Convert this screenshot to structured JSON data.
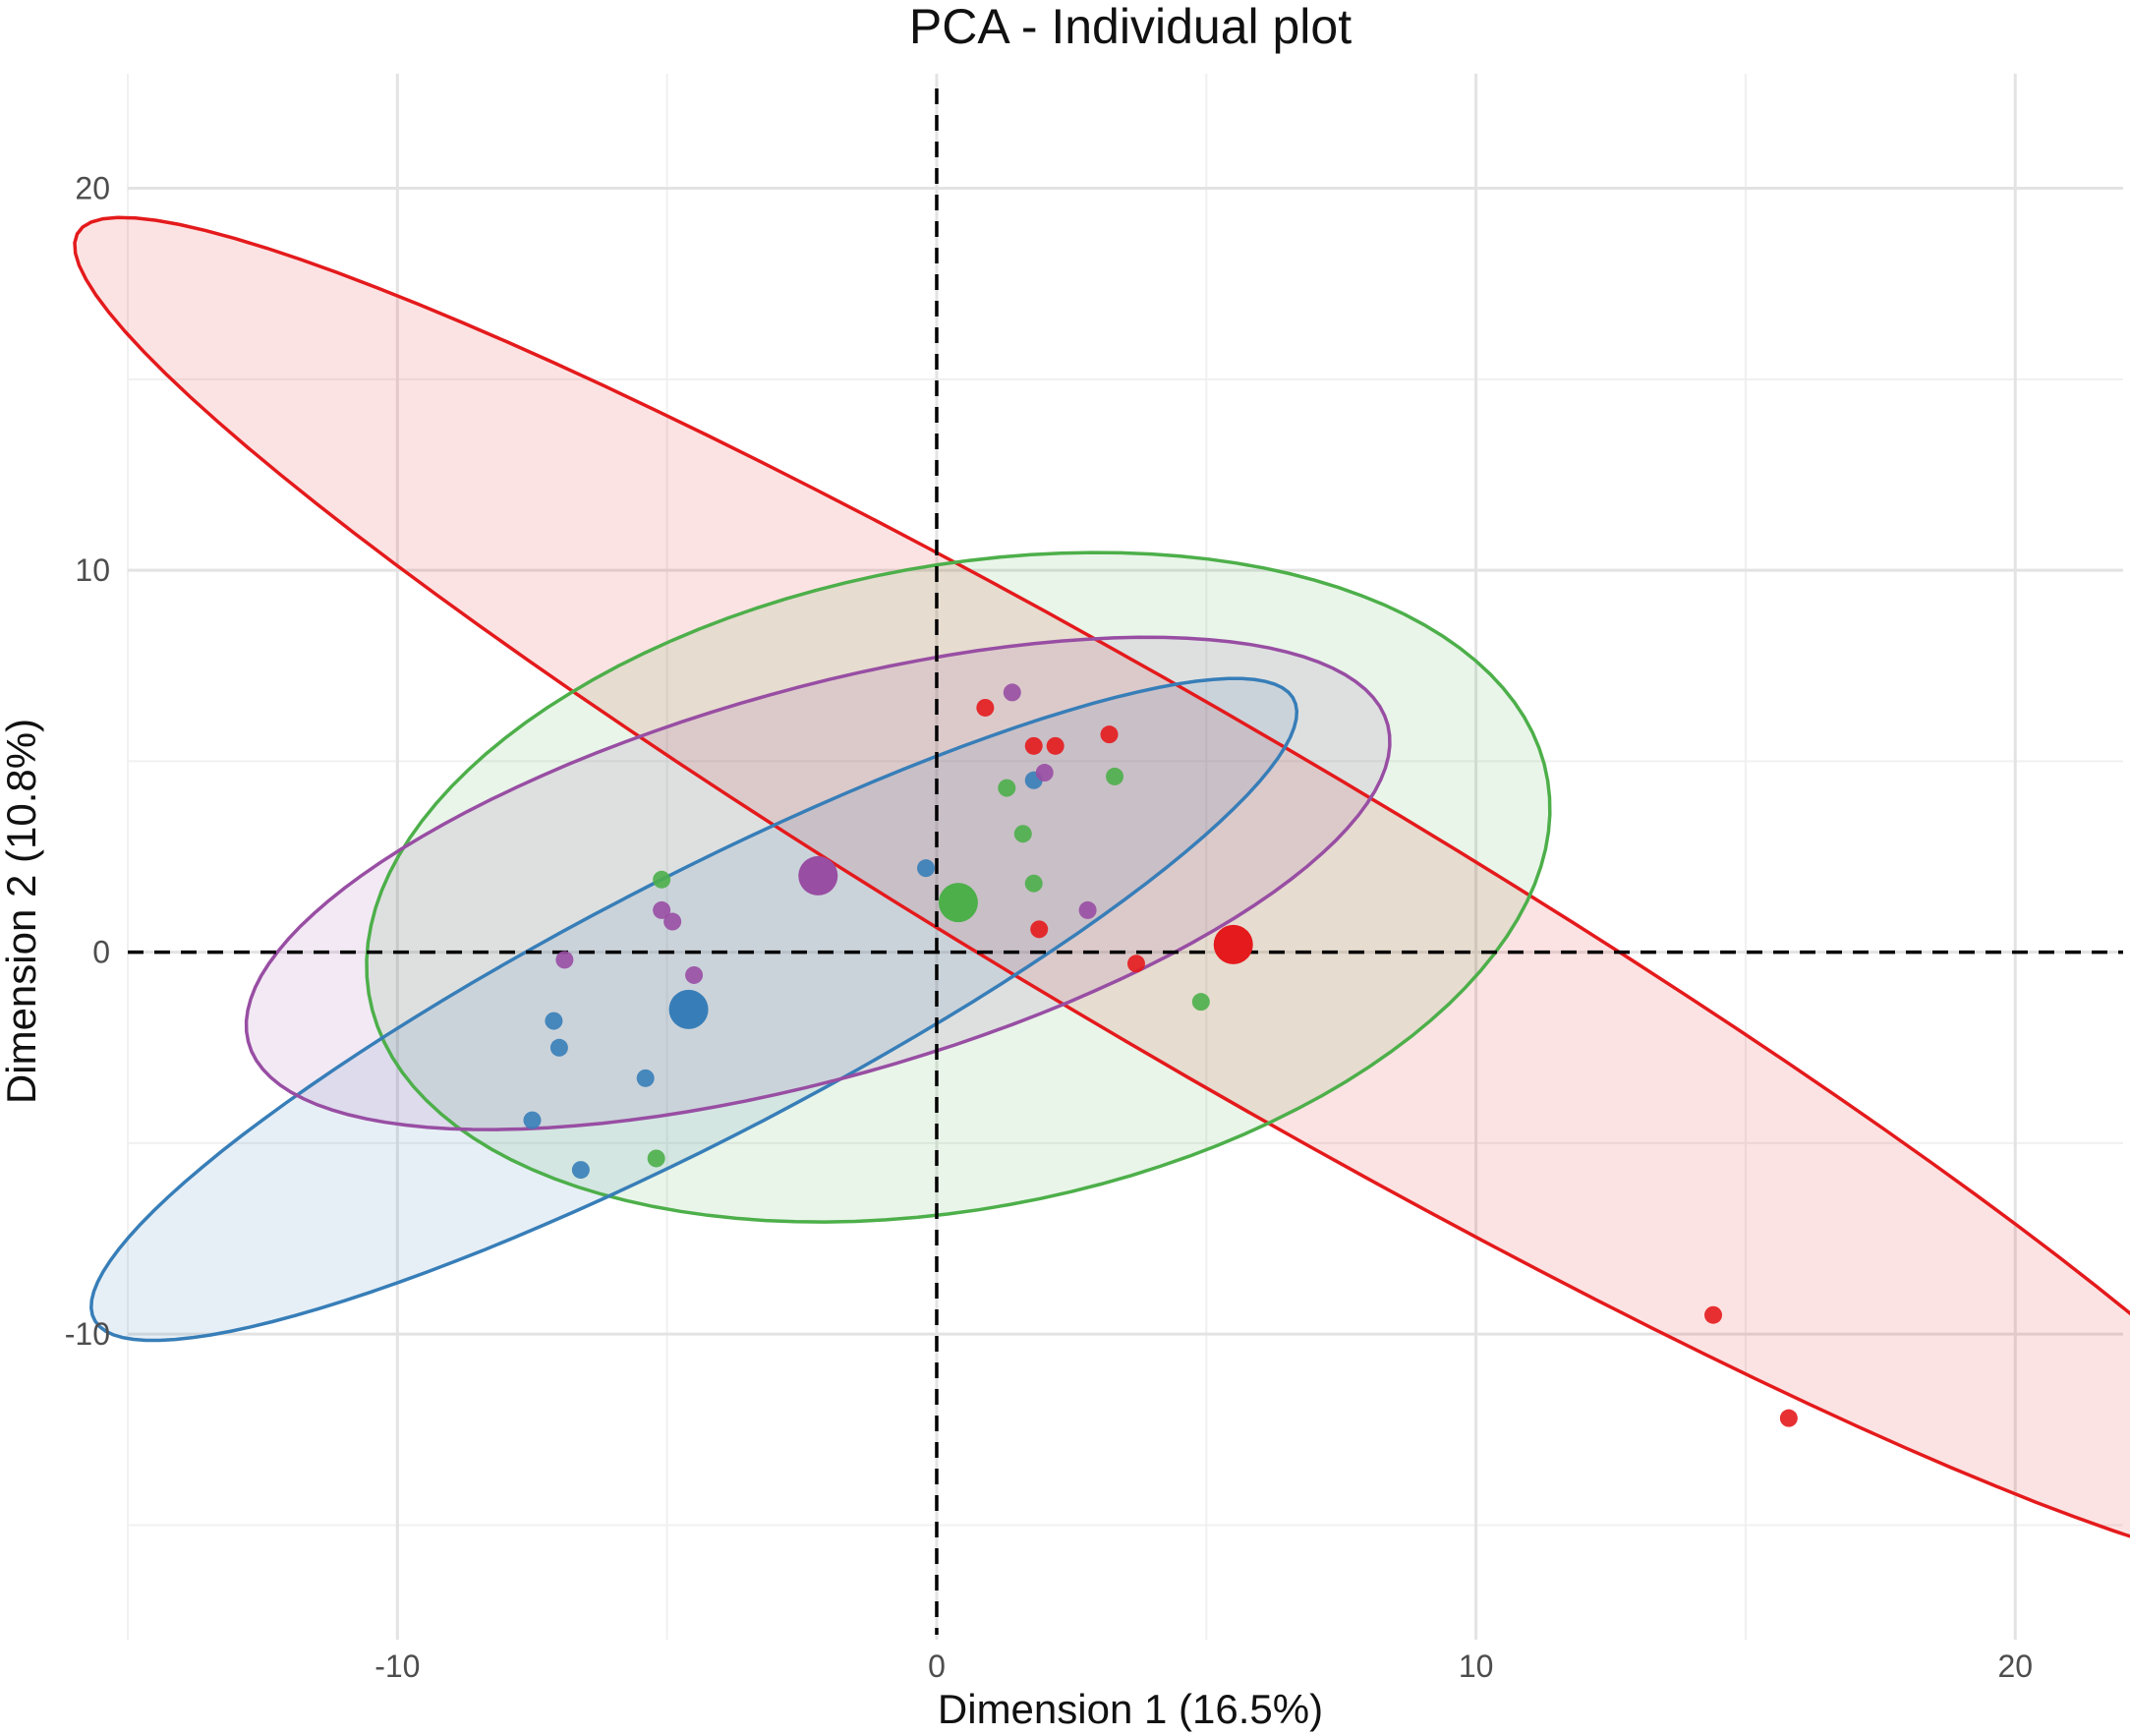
{
  "chart_data": {
    "type": "scatter",
    "title": "PCA - Individual plot",
    "xlabel": "Dimension 1 (16.5%)",
    "ylabel": "Dimension 2 (10.8%)",
    "xlim": [
      -15,
      22
    ],
    "ylim": [
      -18,
      23
    ],
    "grid": true,
    "legend": "none",
    "x_ticks": [
      -10,
      0,
      10,
      20
    ],
    "y_ticks": [
      -10,
      0,
      10,
      20
    ],
    "reference_lines": {
      "x": 0,
      "y": 0,
      "style": "dashed"
    },
    "series": [
      {
        "name": "red",
        "color": "#e41a1c",
        "points": [
          [
            0.9,
            6.4
          ],
          [
            1.8,
            5.4
          ],
          [
            2.2,
            5.4
          ],
          [
            3.2,
            5.7
          ],
          [
            1.9,
            0.6
          ],
          [
            3.7,
            -0.3
          ],
          [
            14.4,
            -9.5
          ],
          [
            15.8,
            -12.2
          ]
        ],
        "centroid": [
          5.5,
          0.2
        ],
        "ellipse": {
          "center": [
            5,
            1.5
          ],
          "semi_axes": [
            27.2,
            3.9
          ],
          "angle_deg": -40
        }
      },
      {
        "name": "green",
        "color": "#4daf4a",
        "points": [
          [
            -5.1,
            1.9
          ],
          [
            1.3,
            4.3
          ],
          [
            1.6,
            3.1
          ],
          [
            1.8,
            1.8
          ],
          [
            3.3,
            4.6
          ],
          [
            4.9,
            -1.3
          ],
          [
            -5.2,
            -5.4
          ]
        ],
        "centroid": [
          0.4,
          1.3
        ],
        "ellipse": {
          "center": [
            0.4,
            1.7
          ],
          "semi_axes": [
            11.4,
            8.2
          ],
          "angle_deg": 23
        }
      },
      {
        "name": "blue",
        "color": "#377eb8",
        "points": [
          [
            -0.2,
            2.2
          ],
          [
            1.8,
            4.5
          ],
          [
            -7.1,
            -1.8
          ],
          [
            -7.0,
            -2.5
          ],
          [
            -7.5,
            -4.4
          ],
          [
            -5.4,
            -3.3
          ],
          [
            -6.6,
            -5.7
          ]
        ],
        "centroid": [
          -4.6,
          -1.5
        ],
        "ellipse": {
          "center": [
            -4.5,
            -1.5
          ],
          "semi_axes": [
            13.8,
            3.1
          ],
          "angle_deg": 37
        }
      },
      {
        "name": "purple",
        "color": "#984ea3",
        "points": [
          [
            -5.1,
            1.1
          ],
          [
            -4.9,
            0.8
          ],
          [
            -6.9,
            -0.2
          ],
          [
            -4.5,
            -0.6
          ],
          [
            1.4,
            6.8
          ],
          [
            2.0,
            4.7
          ],
          [
            2.8,
            1.1
          ]
        ],
        "centroid": [
          -2.2,
          2.0
        ],
        "ellipse": {
          "center": [
            -2.2,
            1.8
          ],
          "semi_axes": [
            11.4,
            4.9
          ],
          "angle_deg": 24
        }
      }
    ]
  }
}
